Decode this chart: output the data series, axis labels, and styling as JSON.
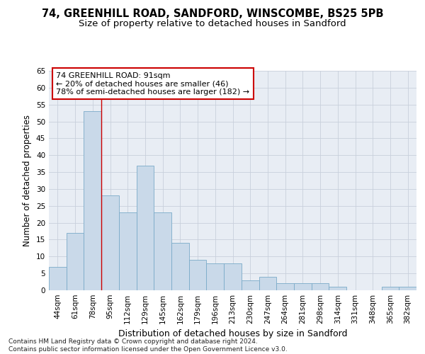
{
  "title1": "74, GREENHILL ROAD, SANDFORD, WINSCOMBE, BS25 5PB",
  "title2": "Size of property relative to detached houses in Sandford",
  "xlabel": "Distribution of detached houses by size in Sandford",
  "ylabel": "Number of detached properties",
  "categories": [
    "44sqm",
    "61sqm",
    "78sqm",
    "95sqm",
    "112sqm",
    "129sqm",
    "145sqm",
    "162sqm",
    "179sqm",
    "196sqm",
    "213sqm",
    "230sqm",
    "247sqm",
    "264sqm",
    "281sqm",
    "298sqm",
    "314sqm",
    "331sqm",
    "348sqm",
    "365sqm",
    "382sqm"
  ],
  "values": [
    7,
    17,
    53,
    28,
    23,
    37,
    23,
    14,
    9,
    8,
    8,
    3,
    4,
    2,
    2,
    2,
    1,
    0,
    0,
    1,
    1
  ],
  "bar_color": "#c9d9e9",
  "bar_edge_color": "#7aaac8",
  "highlight_bar_index": 2,
  "highlight_color": "#cc0000",
  "annotation_line1": "74 GREENHILL ROAD: 91sqm",
  "annotation_line2": "← 20% of detached houses are smaller (46)",
  "annotation_line3": "78% of semi-detached houses are larger (182) →",
  "annotation_box_color": "#ffffff",
  "annotation_box_edge": "#cc0000",
  "ylim": [
    0,
    65
  ],
  "yticks": [
    0,
    5,
    10,
    15,
    20,
    25,
    30,
    35,
    40,
    45,
    50,
    55,
    60,
    65
  ],
  "grid_color": "#c8d0dc",
  "background_color": "#e8edf4",
  "footer_line1": "Contains HM Land Registry data © Crown copyright and database right 2024.",
  "footer_line2": "Contains public sector information licensed under the Open Government Licence v3.0.",
  "title1_fontsize": 10.5,
  "title2_fontsize": 9.5,
  "xlabel_fontsize": 9,
  "ylabel_fontsize": 8.5,
  "tick_fontsize": 7.5,
  "annotation_fontsize": 8,
  "footer_fontsize": 6.5
}
